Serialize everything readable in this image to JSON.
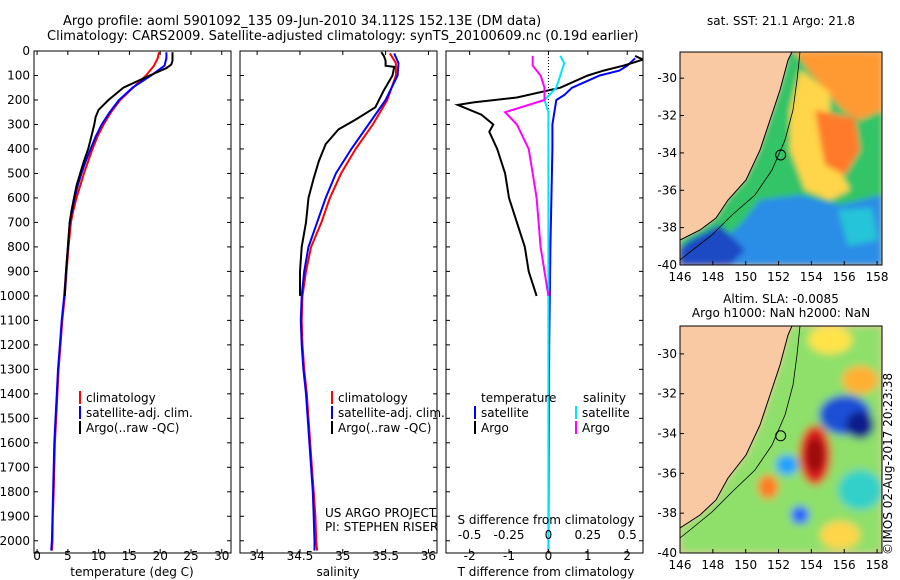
{
  "header": {
    "title_line1": "Argo profile: aoml 5901092_135 09-Jun-2010 34.112S 152.13E (DM data)",
    "title_line2": "Climatology: CARS2009. Satellite-adjusted climatology: synTS_20100609.nc (0.19d earlier)"
  },
  "colors": {
    "climatology": "#ff0000",
    "satellite": "#0000ff",
    "argo": "#000000",
    "salinity_satellite": "#00e5ff",
    "salinity_argo": "#ff00ff",
    "land": "#f9c9a4"
  },
  "chart_data": [
    {
      "id": "temperature",
      "type": "line",
      "xlabel": "temperature (deg C)",
      "xlim": [
        -0.5,
        31.5
      ],
      "xticks": [
        0,
        5,
        10,
        15,
        20,
        25,
        30
      ],
      "ylim": [
        2050,
        0
      ],
      "yticks": [
        0,
        100,
        200,
        300,
        400,
        500,
        600,
        700,
        800,
        900,
        1000,
        1100,
        1200,
        1300,
        1400,
        1500,
        1600,
        1700,
        1800,
        1900,
        2000
      ],
      "legend": [
        "climatology",
        "satellite-adj. clim.",
        "Argo(..raw -QC)"
      ],
      "series": [
        {
          "name": "climatology",
          "color": "#ff0000",
          "points": [
            [
              19.8,
              5
            ],
            [
              19.6,
              30
            ],
            [
              19.0,
              60
            ],
            [
              17.7,
              100
            ],
            [
              15.6,
              150
            ],
            [
              13.5,
              200
            ],
            [
              12.0,
              250
            ],
            [
              10.8,
              300
            ],
            [
              9.8,
              350
            ],
            [
              9.0,
              400
            ],
            [
              8.3,
              450
            ],
            [
              7.6,
              500
            ],
            [
              7.0,
              550
            ],
            [
              6.4,
              600
            ],
            [
              5.9,
              650
            ],
            [
              5.5,
              700
            ],
            [
              5.1,
              800
            ],
            [
              4.8,
              900
            ],
            [
              4.5,
              1000
            ],
            [
              4.1,
              1100
            ],
            [
              3.8,
              1200
            ],
            [
              3.5,
              1300
            ],
            [
              3.3,
              1400
            ],
            [
              3.1,
              1500
            ],
            [
              2.9,
              1600
            ],
            [
              2.8,
              1700
            ],
            [
              2.7,
              1800
            ],
            [
              2.55,
              1900
            ],
            [
              2.5,
              2000
            ],
            [
              2.4,
              2040
            ]
          ]
        },
        {
          "name": "satellite-adj. clim.",
          "color": "#0000ff",
          "points": [
            [
              21.0,
              5
            ],
            [
              21.0,
              30
            ],
            [
              20.7,
              60
            ],
            [
              18.5,
              100
            ],
            [
              15.5,
              150
            ],
            [
              13.3,
              200
            ],
            [
              11.8,
              250
            ],
            [
              10.5,
              300
            ],
            [
              9.5,
              350
            ],
            [
              8.7,
              400
            ],
            [
              7.9,
              450
            ],
            [
              7.2,
              500
            ],
            [
              6.6,
              550
            ],
            [
              6.1,
              600
            ],
            [
              5.7,
              650
            ],
            [
              5.3,
              700
            ],
            [
              5.0,
              800
            ],
            [
              4.7,
              900
            ],
            [
              4.4,
              1000
            ],
            [
              4.0,
              1100
            ],
            [
              3.7,
              1200
            ],
            [
              3.4,
              1300
            ],
            [
              3.2,
              1400
            ],
            [
              3.0,
              1500
            ],
            [
              2.8,
              1600
            ],
            [
              2.7,
              1700
            ],
            [
              2.6,
              1800
            ],
            [
              2.5,
              1900
            ],
            [
              2.4,
              2000
            ],
            [
              2.3,
              2040
            ]
          ]
        },
        {
          "name": "Argo(..raw -QC)",
          "color": "#000000",
          "points": [
            [
              22.0,
              5
            ],
            [
              22.0,
              40
            ],
            [
              21.8,
              55
            ],
            [
              21.0,
              70
            ],
            [
              18.3,
              100
            ],
            [
              14.0,
              150
            ],
            [
              11.6,
              200
            ],
            [
              10.0,
              240
            ],
            [
              9.5,
              270
            ],
            [
              9.3,
              300
            ],
            [
              8.8,
              350
            ],
            [
              8.3,
              400
            ],
            [
              7.6,
              450
            ],
            [
              7.0,
              500
            ],
            [
              6.4,
              550
            ],
            [
              6.0,
              600
            ],
            [
              5.6,
              650
            ],
            [
              5.3,
              700
            ],
            [
              5.0,
              800
            ],
            [
              4.7,
              900
            ],
            [
              4.5,
              1000
            ]
          ]
        }
      ]
    },
    {
      "id": "salinity",
      "type": "line",
      "xlabel": "salinity",
      "xlim": [
        33.8,
        36.1
      ],
      "xticks": [
        34,
        34.5,
        35,
        35.5,
        36
      ],
      "ylim": [
        2050,
        0
      ],
      "legend": [
        "climatology",
        "satellite-adj. clim.",
        "Argo(..raw -QC)"
      ],
      "annotation": [
        "US ARGO PROJECT",
        "PI: STEPHEN RISER"
      ],
      "series": [
        {
          "name": "climatology",
          "color": "#ff0000",
          "points": [
            [
              35.55,
              10
            ],
            [
              35.62,
              50
            ],
            [
              35.62,
              100
            ],
            [
              35.52,
              200
            ],
            [
              35.35,
              300
            ],
            [
              35.15,
              400
            ],
            [
              34.98,
              500
            ],
            [
              34.85,
              600
            ],
            [
              34.75,
              700
            ],
            [
              34.63,
              800
            ],
            [
              34.57,
              900
            ],
            [
              34.53,
              1000
            ],
            [
              34.52,
              1100
            ],
            [
              34.53,
              1200
            ],
            [
              34.55,
              1300
            ],
            [
              34.58,
              1400
            ],
            [
              34.6,
              1500
            ],
            [
              34.62,
              1600
            ],
            [
              34.64,
              1700
            ],
            [
              34.66,
              1800
            ],
            [
              34.68,
              1900
            ],
            [
              34.69,
              2000
            ],
            [
              34.7,
              2040
            ]
          ]
        },
        {
          "name": "satellite-adj. clim.",
          "color": "#0000ff",
          "points": [
            [
              35.6,
              10
            ],
            [
              35.65,
              50
            ],
            [
              35.64,
              100
            ],
            [
              35.5,
              200
            ],
            [
              35.3,
              300
            ],
            [
              35.1,
              400
            ],
            [
              34.92,
              500
            ],
            [
              34.8,
              600
            ],
            [
              34.7,
              700
            ],
            [
              34.6,
              800
            ],
            [
              34.55,
              900
            ],
            [
              34.52,
              1000
            ],
            [
              34.51,
              1100
            ],
            [
              34.52,
              1200
            ],
            [
              34.54,
              1300
            ],
            [
              34.57,
              1400
            ],
            [
              34.59,
              1500
            ],
            [
              34.61,
              1600
            ],
            [
              34.63,
              1700
            ],
            [
              34.65,
              1800
            ],
            [
              34.66,
              1900
            ],
            [
              34.67,
              2000
            ],
            [
              34.67,
              2040
            ]
          ]
        },
        {
          "name": "Argo(..raw -QC)",
          "color": "#000000",
          "points": [
            [
              35.45,
              5
            ],
            [
              35.48,
              20
            ],
            [
              35.5,
              40
            ],
            [
              35.5,
              60
            ],
            [
              35.6,
              65
            ],
            [
              35.58,
              100
            ],
            [
              35.48,
              160
            ],
            [
              35.38,
              230
            ],
            [
              35.15,
              280
            ],
            [
              34.95,
              320
            ],
            [
              34.8,
              380
            ],
            [
              34.72,
              450
            ],
            [
              34.66,
              520
            ],
            [
              34.6,
              600
            ],
            [
              34.57,
              700
            ],
            [
              34.52,
              800
            ],
            [
              34.5,
              900
            ],
            [
              34.5,
              1000
            ]
          ]
        }
      ]
    },
    {
      "id": "difference",
      "type": "line",
      "xlabel": "T difference from climatology",
      "xlabel_top": "S difference from climatology",
      "xlim": [
        -2.6,
        2.4
      ],
      "xticks": [
        -2,
        -1,
        0,
        1,
        2
      ],
      "xticks_top": [
        "-0.5",
        "-0.25",
        "0",
        "0.25",
        "0.5"
      ],
      "xticks_top_pos": [
        -2,
        -1,
        0,
        1,
        2
      ],
      "ylim": [
        2050,
        0
      ],
      "legend": {
        "temperature": "temperature",
        "salinity": "salinity",
        "entries": [
          "satellite",
          "Argo",
          "satellite",
          "Argo"
        ]
      },
      "series": [
        {
          "name": "temperature satellite",
          "color": "#0000ff",
          "points": [
            [
              2.2,
              30
            ],
            [
              2.0,
              60
            ],
            [
              1.8,
              80
            ],
            [
              1.3,
              100
            ],
            [
              0.6,
              150
            ],
            [
              0.4,
              180
            ],
            [
              0.2,
              200
            ],
            [
              0.1,
              300
            ],
            [
              0.1,
              400
            ],
            [
              0.05,
              800
            ],
            [
              0.02,
              1200
            ],
            [
              0.0,
              2050
            ]
          ]
        },
        {
          "name": "temperature Argo",
          "color": "#000000",
          "points": [
            [
              2.2,
              20
            ],
            [
              2.4,
              35
            ],
            [
              1.9,
              60
            ],
            [
              1.4,
              80
            ],
            [
              1.0,
              100
            ],
            [
              0.3,
              150
            ],
            [
              -0.8,
              190
            ],
            [
              -1.9,
              210
            ],
            [
              -2.3,
              220
            ],
            [
              -1.7,
              260
            ],
            [
              -1.4,
              300
            ],
            [
              -1.5,
              330
            ],
            [
              -1.3,
              400
            ],
            [
              -1.1,
              500
            ],
            [
              -1.0,
              600
            ],
            [
              -0.8,
              700
            ],
            [
              -0.6,
              800
            ],
            [
              -0.5,
              900
            ],
            [
              -0.3,
              1000
            ]
          ]
        },
        {
          "name": "salinity satellite",
          "color": "#00e5ff",
          "points": [
            [
              0.3,
              20
            ],
            [
              0.4,
              50
            ],
            [
              0.3,
              100
            ],
            [
              0.2,
              150
            ],
            [
              -0.1,
              200
            ],
            [
              0.0,
              250
            ],
            [
              0.0,
              2050
            ]
          ]
        },
        {
          "name": "salinity Argo",
          "color": "#ff00ff",
          "points": [
            [
              -0.4,
              20
            ],
            [
              -0.4,
              60
            ],
            [
              -0.2,
              100
            ],
            [
              -0.1,
              150
            ],
            [
              -0.1,
              200
            ],
            [
              -1.1,
              250
            ],
            [
              -0.8,
              300
            ],
            [
              -0.5,
              400
            ],
            [
              -0.4,
              500
            ],
            [
              -0.3,
              600
            ],
            [
              -0.2,
              800
            ],
            [
              -0.1,
              900
            ],
            [
              0.0,
              1000
            ]
          ]
        }
      ]
    },
    {
      "id": "sst-map",
      "type": "heatmap",
      "title": "sat. SST: 21.1  Argo: 21.8",
      "xlim": [
        146,
        158.3
      ],
      "ylim": [
        -40,
        -28.6
      ],
      "xticks": [
        146,
        148,
        150,
        152,
        154,
        156,
        158
      ],
      "yticks": [
        -30,
        -32,
        -34,
        -36,
        -38,
        -40
      ],
      "marker": {
        "lon": 152.13,
        "lat": -34.112
      }
    },
    {
      "id": "sla-map",
      "type": "heatmap",
      "title_line1": "Altim. SLA: -0.0085",
      "title_line2": "Argo h1000: NaN h2000: NaN",
      "xlim": [
        146,
        158.3
      ],
      "ylim": [
        -40,
        -28.6
      ],
      "xticks": [
        146,
        148,
        150,
        152,
        154,
        156,
        158
      ],
      "yticks": [
        -30,
        -32,
        -34,
        -36,
        -38,
        -40
      ],
      "marker": {
        "lon": 152.13,
        "lat": -34.112
      }
    }
  ],
  "stamp": "©IMOS 02-Aug-2017 20:23:38"
}
